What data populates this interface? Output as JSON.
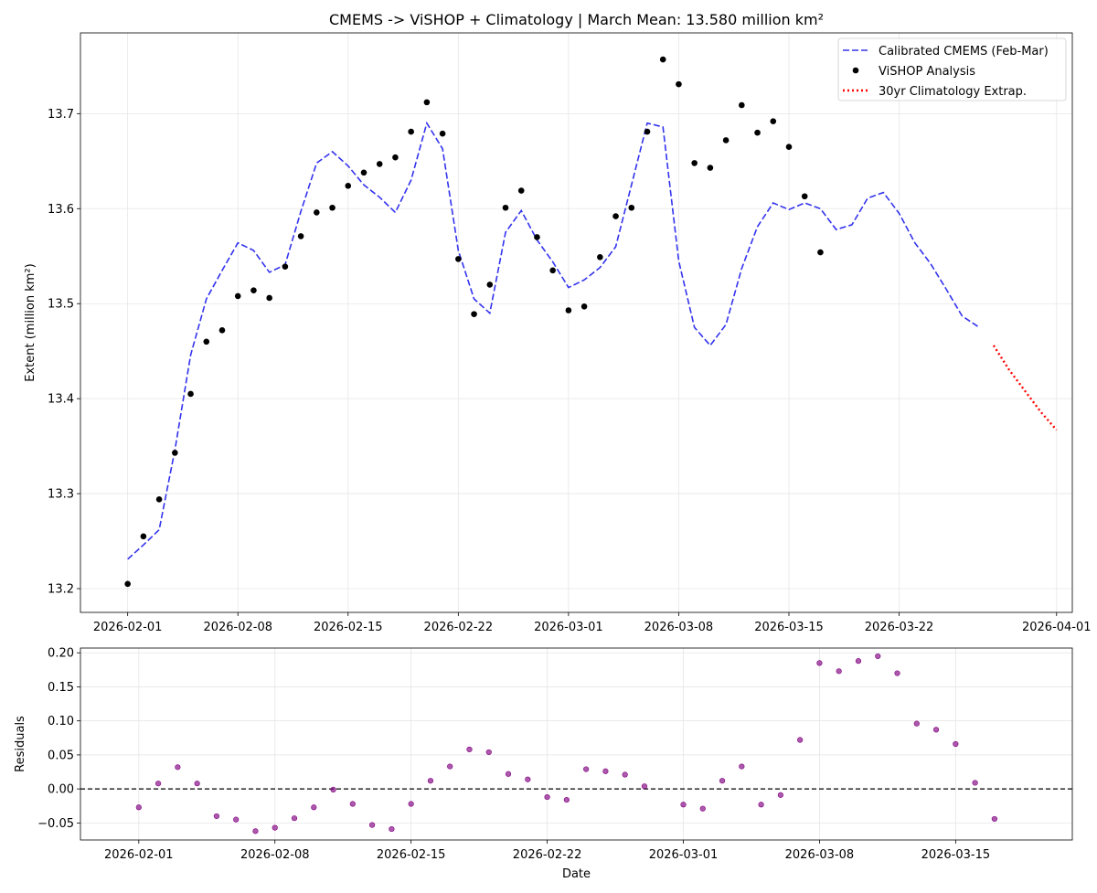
{
  "chart_data": [
    {
      "type": "line",
      "title": "CMEMS -> ViSHOP + Climatology | March Mean: 13.580 million km²",
      "xlabel": "",
      "ylabel": "Extent (million km²)",
      "xlim": [
        "2026-01-29",
        "2026-04-02"
      ],
      "ylim": [
        13.175,
        13.785
      ],
      "x_ticks": [
        "2026-02-01",
        "2026-02-08",
        "2026-02-15",
        "2026-02-22",
        "2026-03-01",
        "2026-03-08",
        "2026-03-15",
        "2026-03-22",
        "2026-04-01"
      ],
      "y_ticks": [
        "13.2",
        "13.3",
        "13.4",
        "13.5",
        "13.6",
        "13.7"
      ],
      "grid": true,
      "legend": "top-right",
      "series": [
        {
          "name": "Calibrated CMEMS (Feb-Mar)",
          "style": "dashed",
          "color": "#3333ee",
          "start": "2026-02-01",
          "values": [
            13.231,
            13.246,
            13.262,
            13.346,
            13.446,
            13.505,
            13.535,
            13.564,
            13.556,
            13.533,
            13.541,
            13.597,
            13.648,
            13.66,
            13.645,
            13.625,
            13.612,
            13.596,
            13.63,
            13.69,
            13.663,
            13.556,
            13.505,
            13.49,
            13.575,
            13.598,
            13.567,
            13.544,
            13.517,
            13.525,
            13.538,
            13.56,
            13.625,
            13.69,
            13.686,
            13.545,
            13.475,
            13.456,
            13.478,
            13.537,
            13.581,
            13.606,
            13.599,
            13.606,
            13.6,
            13.578,
            13.583,
            13.611,
            13.617,
            13.595,
            13.564,
            13.542,
            13.515,
            13.487,
            13.476
          ]
        },
        {
          "name": "ViSHOP Analysis",
          "style": "markers",
          "color": "#000000",
          "start": "2026-02-01",
          "values": [
            13.205,
            13.255,
            13.294,
            13.343,
            13.405,
            13.46,
            13.472,
            13.508,
            13.514,
            13.506,
            13.539,
            13.571,
            13.596,
            13.601,
            13.624,
            13.638,
            13.647,
            13.654,
            13.681,
            13.712,
            13.679,
            13.547,
            13.489,
            13.52,
            13.601,
            13.619,
            13.57,
            13.535,
            13.493,
            13.497,
            13.549,
            13.592,
            13.601,
            13.681,
            13.757,
            13.731,
            13.648,
            13.643,
            13.672,
            13.709,
            13.68,
            13.692,
            13.665,
            13.613,
            13.554
          ]
        },
        {
          "name": "30yr Climatology Extrap.",
          "style": "dotted",
          "color": "#ff0000",
          "start": "2026-03-28",
          "values": [
            13.456,
            13.43,
            13.408,
            13.386,
            13.367
          ]
        }
      ]
    },
    {
      "type": "scatter",
      "title": "",
      "xlabel": "Date",
      "ylabel": "Residuals",
      "xlim": [
        "2026-01-29",
        "2026-03-21"
      ],
      "ylim": [
        -0.075,
        0.207
      ],
      "x_ticks": [
        "2026-02-01",
        "2026-02-08",
        "2026-02-15",
        "2026-02-22",
        "2026-03-01",
        "2026-03-08",
        "2026-03-15"
      ],
      "y_ticks": [
        "−0.05",
        "0.00",
        "0.05",
        "0.10",
        "0.15",
        "0.20"
      ],
      "grid": true,
      "reference_line": 0,
      "color": "#800080",
      "start": "2026-02-01",
      "values": [
        -0.027,
        0.008,
        0.032,
        0.008,
        -0.04,
        -0.045,
        -0.062,
        -0.057,
        -0.043,
        -0.027,
        -0.001,
        -0.022,
        -0.053,
        -0.059,
        -0.022,
        0.012,
        0.033,
        0.058,
        0.054,
        0.022,
        0.014,
        -0.012,
        -0.016,
        0.029,
        0.026,
        0.021,
        0.004,
        null,
        -0.023,
        -0.029,
        0.012,
        0.033,
        -0.023,
        -0.009,
        0.072,
        0.185,
        0.173,
        0.188,
        0.195,
        0.17,
        0.096,
        0.087,
        0.066,
        0.009,
        -0.044
      ]
    }
  ]
}
